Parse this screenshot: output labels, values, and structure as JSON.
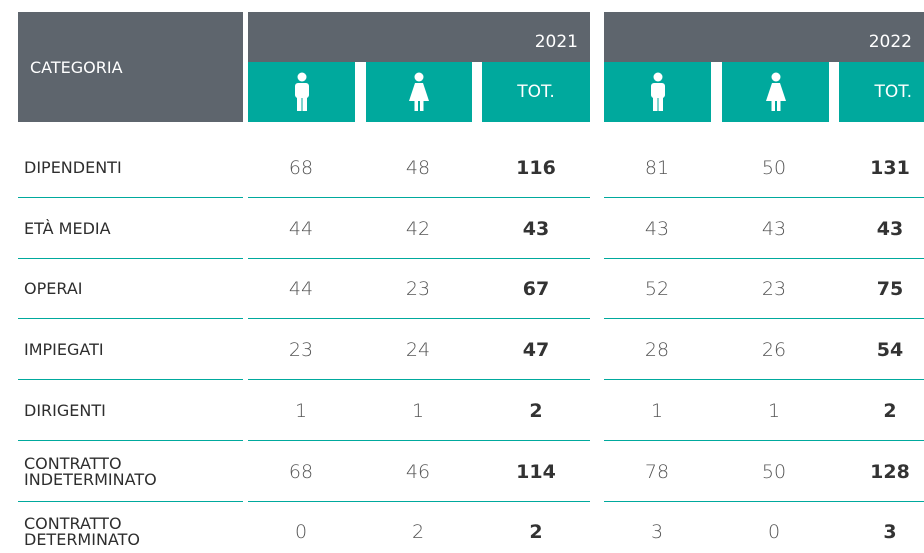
{
  "header": {
    "category": "CATEGORIA",
    "years": [
      "2021",
      "2022"
    ],
    "total": "TOT."
  },
  "rows": [
    {
      "label": "DIPENDENTI",
      "values": [
        68,
        48,
        116,
        81,
        50,
        131
      ]
    },
    {
      "label": "ETÀ MEDIA",
      "values": [
        44,
        42,
        43,
        43,
        43,
        43
      ]
    },
    {
      "label": "OPERAI",
      "values": [
        44,
        23,
        67,
        52,
        23,
        75
      ]
    },
    {
      "label": "IMPIEGATI",
      "values": [
        23,
        24,
        47,
        28,
        26,
        54
      ]
    },
    {
      "label": "DIRIGENTI",
      "values": [
        1,
        1,
        2,
        1,
        1,
        2
      ]
    },
    {
      "label": "CONTRATTO\nINDETERMINATO",
      "values": [
        68,
        46,
        114,
        78,
        50,
        128
      ]
    },
    {
      "label": "CONTRATTO\nDETERMINATO",
      "values": [
        0,
        2,
        2,
        3,
        0,
        3
      ]
    }
  ]
}
